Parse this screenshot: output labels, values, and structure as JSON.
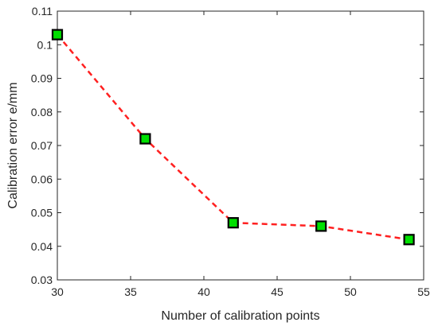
{
  "chart_data": {
    "type": "line",
    "xlabel": "Number of calibration points",
    "ylabel": "Calibration error e/mm",
    "xlim": [
      30,
      55
    ],
    "ylim": [
      0.03,
      0.11
    ],
    "xticks": [
      30,
      35,
      40,
      45,
      50,
      55
    ],
    "xtick_labels": [
      "30",
      "35",
      "40",
      "45",
      "50",
      "55"
    ],
    "yticks": [
      0.03,
      0.04,
      0.05,
      0.06,
      0.07,
      0.08,
      0.09,
      0.1,
      0.11
    ],
    "ytick_labels": [
      "0.03",
      "0.04",
      "0.05",
      "0.06",
      "0.07",
      "0.08",
      "0.09",
      "0.1",
      "0.11"
    ],
    "grid": false,
    "series": [
      {
        "x": [
          30,
          36,
          42,
          48,
          54
        ],
        "y": [
          0.103,
          0.072,
          0.047,
          0.046,
          0.042
        ],
        "line_color": "#ff2020",
        "line_style": "dashed",
        "marker": "square",
        "marker_fill": "#00e000",
        "marker_edge": "#000000"
      }
    ]
  }
}
